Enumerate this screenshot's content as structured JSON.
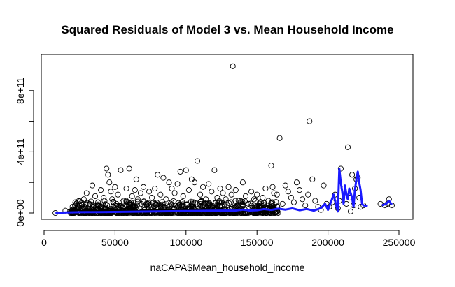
{
  "chart_data": {
    "type": "scatter",
    "title": "Squared Residuals of Model 3 vs. Mean Household Income",
    "xlabel": "naCAPA$Mean_household_income",
    "ylabel": "",
    "xlim": [
      0,
      250000
    ],
    "ylim": [
      0,
      1000000000000
    ],
    "x_ticks": [
      {
        "value": 0,
        "label": "0"
      },
      {
        "value": 50000,
        "label": "50000"
      },
      {
        "value": 100000,
        "label": "100000"
      },
      {
        "value": 150000,
        "label": "150000"
      },
      {
        "value": 200000,
        "label": "200000"
      },
      {
        "value": 250000,
        "label": "250000"
      }
    ],
    "y_ticks": [
      {
        "value": 0,
        "label": "0e+00"
      },
      {
        "value": 200000000000,
        "label": ""
      },
      {
        "value": 400000000000,
        "label": "4e+11"
      },
      {
        "value": 600000000000,
        "label": ""
      },
      {
        "value": 800000000000,
        "label": "8e+11"
      }
    ],
    "grid": false,
    "points": [
      [
        8000,
        0
      ],
      [
        15000,
        15000000000
      ],
      [
        20000,
        40000000000
      ],
      [
        22000,
        70000000000
      ],
      [
        25000,
        50000000000
      ],
      [
        28000,
        90000000000
      ],
      [
        30000,
        130000000000
      ],
      [
        32000,
        60000000000
      ],
      [
        34000,
        180000000000
      ],
      [
        36000,
        110000000000
      ],
      [
        38000,
        70000000000
      ],
      [
        40000,
        150000000000
      ],
      [
        42000,
        100000000000
      ],
      [
        44000,
        290000000000
      ],
      [
        45000,
        250000000000
      ],
      [
        46000,
        200000000000
      ],
      [
        47000,
        140000000000
      ],
      [
        48000,
        90000000000
      ],
      [
        50000,
        170000000000
      ],
      [
        52000,
        120000000000
      ],
      [
        54000,
        280000000000
      ],
      [
        56000,
        80000000000
      ],
      [
        58000,
        160000000000
      ],
      [
        60000,
        290000000000
      ],
      [
        62000,
        110000000000
      ],
      [
        64000,
        150000000000
      ],
      [
        65000,
        220000000000
      ],
      [
        66000,
        90000000000
      ],
      [
        68000,
        130000000000
      ],
      [
        70000,
        170000000000
      ],
      [
        72000,
        60000000000
      ],
      [
        74000,
        140000000000
      ],
      [
        76000,
        100000000000
      ],
      [
        78000,
        160000000000
      ],
      [
        80000,
        250000000000
      ],
      [
        82000,
        120000000000
      ],
      [
        84000,
        230000000000
      ],
      [
        86000,
        90000000000
      ],
      [
        88000,
        200000000000
      ],
      [
        90000,
        160000000000
      ],
      [
        92000,
        130000000000
      ],
      [
        94000,
        190000000000
      ],
      [
        96000,
        270000000000
      ],
      [
        98000,
        110000000000
      ],
      [
        100000,
        280000000000
      ],
      [
        102000,
        150000000000
      ],
      [
        104000,
        220000000000
      ],
      [
        106000,
        200000000000
      ],
      [
        108000,
        340000000000
      ],
      [
        110000,
        120000000000
      ],
      [
        112000,
        170000000000
      ],
      [
        114000,
        90000000000
      ],
      [
        116000,
        190000000000
      ],
      [
        118000,
        140000000000
      ],
      [
        120000,
        280000000000
      ],
      [
        122000,
        100000000000
      ],
      [
        124000,
        160000000000
      ],
      [
        126000,
        130000000000
      ],
      [
        128000,
        90000000000
      ],
      [
        130000,
        170000000000
      ],
      [
        132000,
        120000000000
      ],
      [
        133000,
        960000000000
      ],
      [
        135000,
        150000000000
      ],
      [
        137000,
        80000000000
      ],
      [
        140000,
        200000000000
      ],
      [
        142000,
        110000000000
      ],
      [
        144000,
        60000000000
      ],
      [
        146000,
        140000000000
      ],
      [
        148000,
        90000000000
      ],
      [
        150000,
        120000000000
      ],
      [
        152000,
        70000000000
      ],
      [
        154000,
        100000000000
      ],
      [
        156000,
        160000000000
      ],
      [
        158000,
        80000000000
      ],
      [
        160000,
        310000000000
      ],
      [
        161000,
        170000000000
      ],
      [
        162000,
        130000000000
      ],
      [
        164000,
        120000000000
      ],
      [
        166000,
        490000000000
      ],
      [
        168000,
        60000000000
      ],
      [
        170000,
        180000000000
      ],
      [
        172000,
        140000000000
      ],
      [
        174000,
        100000000000
      ],
      [
        176000,
        70000000000
      ],
      [
        178000,
        200000000000
      ],
      [
        180000,
        150000000000
      ],
      [
        182000,
        90000000000
      ],
      [
        184000,
        50000000000
      ],
      [
        186000,
        120000000000
      ],
      [
        187000,
        600000000000
      ],
      [
        189000,
        220000000000
      ],
      [
        191000,
        80000000000
      ],
      [
        193000,
        40000000000
      ],
      [
        195000,
        20000000000
      ],
      [
        197000,
        180000000000
      ],
      [
        199000,
        60000000000
      ],
      [
        201000,
        40000000000
      ],
      [
        203000,
        70000000000
      ],
      [
        205000,
        120000000000
      ],
      [
        207000,
        30000000000
      ],
      [
        208000,
        80000000000
      ],
      [
        209000,
        290000000000
      ],
      [
        211000,
        160000000000
      ],
      [
        213000,
        60000000000
      ],
      [
        214000,
        430000000000
      ],
      [
        215000,
        100000000000
      ],
      [
        216000,
        10000000000
      ],
      [
        217000,
        250000000000
      ],
      [
        218000,
        50000000000
      ],
      [
        219000,
        160000000000
      ],
      [
        220000,
        220000000000
      ],
      [
        221000,
        230000000000
      ],
      [
        222000,
        100000000000
      ],
      [
        223000,
        40000000000
      ],
      [
        225000,
        50000000000
      ],
      [
        237000,
        60000000000
      ],
      [
        240000,
        50000000000
      ],
      [
        242000,
        60000000000
      ],
      [
        243000,
        90000000000
      ],
      [
        245000,
        50000000000
      ]
    ],
    "dense_band": {
      "x_min": 18000,
      "x_max": 165000,
      "y_max": 80000000000
    },
    "fit_line": {
      "name": "",
      "color": "#1a1aff",
      "points": [
        [
          8000,
          0
        ],
        [
          12000,
          2000000000
        ],
        [
          16000,
          3000000000
        ],
        [
          25000,
          5000000000
        ],
        [
          40000,
          6000000000
        ],
        [
          60000,
          8000000000
        ],
        [
          80000,
          10000000000
        ],
        [
          100000,
          13000000000
        ],
        [
          120000,
          15000000000
        ],
        [
          135000,
          16000000000
        ],
        [
          140000,
          22000000000
        ],
        [
          145000,
          16000000000
        ],
        [
          150000,
          18000000000
        ],
        [
          155000,
          25000000000
        ],
        [
          160000,
          20000000000
        ],
        [
          165000,
          28000000000
        ],
        [
          170000,
          22000000000
        ],
        [
          175000,
          30000000000
        ],
        [
          180000,
          18000000000
        ],
        [
          185000,
          26000000000
        ],
        [
          190000,
          15000000000
        ],
        [
          195000,
          32000000000
        ],
        [
          198000,
          60000000000
        ],
        [
          200000,
          20000000000
        ],
        [
          202000,
          70000000000
        ],
        [
          204000,
          120000000000
        ],
        [
          206000,
          40000000000
        ],
        [
          207000,
          10000000000
        ],
        [
          208000,
          290000000000
        ],
        [
          209000,
          200000000000
        ],
        [
          210000,
          140000000000
        ],
        [
          211000,
          60000000000
        ],
        [
          212000,
          180000000000
        ],
        [
          213000,
          120000000000
        ],
        [
          214000,
          90000000000
        ],
        [
          215000,
          160000000000
        ],
        [
          216000,
          130000000000
        ],
        [
          217000,
          100000000000
        ],
        [
          218000,
          40000000000
        ],
        [
          219000,
          150000000000
        ],
        [
          220000,
          220000000000
        ],
        [
          221000,
          270000000000
        ],
        [
          222000,
          200000000000
        ],
        [
          223000,
          150000000000
        ],
        [
          224000,
          60000000000
        ],
        [
          225000,
          50000000000
        ],
        [
          228000,
          45000000000
        ]
      ]
    },
    "fit_line_tail": {
      "points": [
        [
          238000,
          50000000000
        ],
        [
          241000,
          60000000000
        ],
        [
          243000,
          80000000000
        ],
        [
          245000,
          55000000000
        ]
      ]
    }
  }
}
